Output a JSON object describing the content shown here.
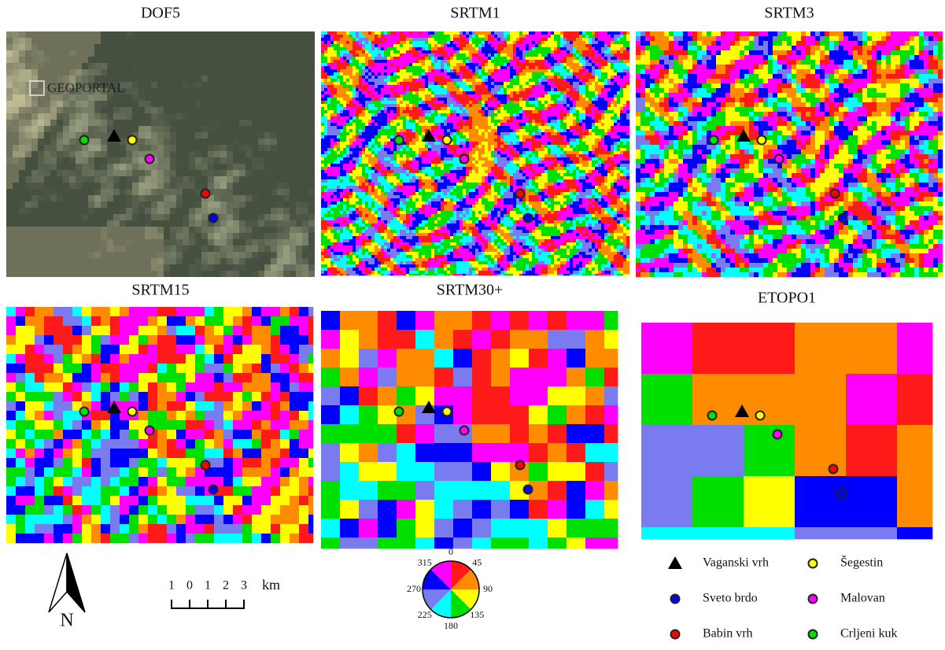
{
  "panels": [
    {
      "title": "DOF5",
      "kind": "photo"
    },
    {
      "title": "SRTM1",
      "kind": "aspect"
    },
    {
      "title": "SRTM3",
      "kind": "aspect"
    },
    {
      "title": "SRTM15",
      "kind": "aspect"
    },
    {
      "title": "SRTM30+",
      "kind": "aspect"
    },
    {
      "title": "ETOPO1",
      "kind": "aspect"
    }
  ],
  "watermark": "GEOPORTAL",
  "compass": {
    "label": "N"
  },
  "scale_bar": {
    "labels": [
      "1",
      "0",
      "1",
      "2",
      "3"
    ],
    "unit": "km"
  },
  "aspect_wheel": {
    "labels": [
      "0",
      "45",
      "90",
      "135",
      "180",
      "225",
      "270",
      "315"
    ],
    "colors": [
      "#ff1a1a",
      "#ff8c00",
      "#ffff00",
      "#00e000",
      "#00ffff",
      "#7b7bf0",
      "#0000ff",
      "#ff00ff"
    ]
  },
  "legend": [
    {
      "label": "Vaganski vrh",
      "symbol": "triangle",
      "color": "#000000"
    },
    {
      "label": "Šegestin",
      "symbol": "circle",
      "color": "#ffff00"
    },
    {
      "label": "Sveto brdo",
      "symbol": "circle",
      "color": "#0000ff"
    },
    {
      "label": "Malovan",
      "symbol": "circle",
      "color": "#ff00ff"
    },
    {
      "label": "Babin vrh",
      "symbol": "circle",
      "color": "#ff0000"
    },
    {
      "label": "Crljeni kuk",
      "symbol": "circle",
      "color": "#00e000"
    }
  ]
}
